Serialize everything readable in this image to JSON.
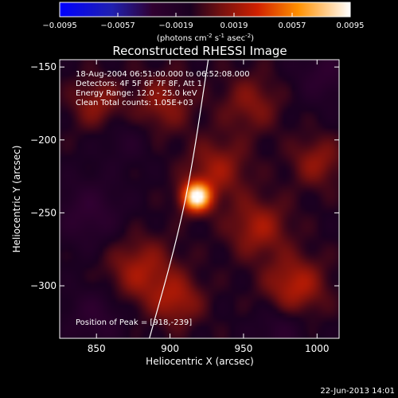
{
  "chart_data": {
    "type": "heatmap",
    "title": "Reconstructed RHESSI Image",
    "xlabel": "Heliocentric X (arcsec)",
    "ylabel": "Heliocentric Y (arcsec)",
    "xlim": [
      825,
      1015
    ],
    "ylim": [
      -336,
      -145
    ],
    "x_ticks": [
      850,
      900,
      950,
      1000
    ],
    "y_ticks": [
      -150,
      -200,
      -250,
      -300
    ],
    "colorbar": {
      "range": [
        -0.0095,
        0.0095
      ],
      "ticks": [
        "-0.0095",
        "-0.0057",
        "-0.0019",
        "0.0019",
        "0.0057",
        "0.0095"
      ],
      "label_base": "(photons cm",
      "label_sup1": "-2",
      "label_mid": " s",
      "label_sup2": "-1",
      "label_end": " asec",
      "label_sup3": "-2",
      "label_close": ")"
    },
    "annotations": [
      "18-Aug-2004 06:51:00.000 to 06:52:08.000",
      "Detectors: 4F 5F 6F 7F 8F, Att 1",
      "Energy Range: 12.0 - 25.0 keV",
      "Clean    Total counts: 1.05E+03"
    ],
    "peak_label": "Position of Peak = [918,-239]",
    "peak": [
      918,
      -239
    ],
    "limb_curve_points": [
      [
        886,
        -336
      ],
      [
        903,
        -275
      ],
      [
        914,
        -225
      ],
      [
        926,
        -145
      ]
    ],
    "components": [
      {
        "x": 918,
        "y": -239,
        "amp": 1.0,
        "sigma": 7
      },
      {
        "x": 932,
        "y": -220,
        "amp": 0.28,
        "sigma": 14
      },
      {
        "x": 850,
        "y": -175,
        "amp": 0.24,
        "sigma": 12
      },
      {
        "x": 880,
        "y": -290,
        "amp": 0.3,
        "sigma": 16
      },
      {
        "x": 905,
        "y": -310,
        "amp": 0.28,
        "sigma": 12
      },
      {
        "x": 960,
        "y": -260,
        "amp": 0.3,
        "sigma": 14
      },
      {
        "x": 985,
        "y": -300,
        "amp": 0.35,
        "sigma": 14
      },
      {
        "x": 1000,
        "y": -215,
        "amp": 0.25,
        "sigma": 12
      },
      {
        "x": 955,
        "y": -175,
        "amp": 0.22,
        "sigma": 14
      },
      {
        "x": 895,
        "y": -175,
        "amp": 0.24,
        "sigma": 14
      },
      {
        "x": 845,
        "y": -250,
        "amp": -0.22,
        "sigma": 16
      },
      {
        "x": 975,
        "y": -330,
        "amp": -0.18,
        "sigma": 12
      },
      {
        "x": 1005,
        "y": -155,
        "amp": -0.2,
        "sigma": 14
      },
      {
        "x": 870,
        "y": -200,
        "amp": -0.12,
        "sigma": 12
      },
      {
        "x": 850,
        "y": -320,
        "amp": -0.2,
        "sigma": 14
      }
    ]
  },
  "footer": {
    "timestamp": "22-Jun-2013 14:01"
  }
}
